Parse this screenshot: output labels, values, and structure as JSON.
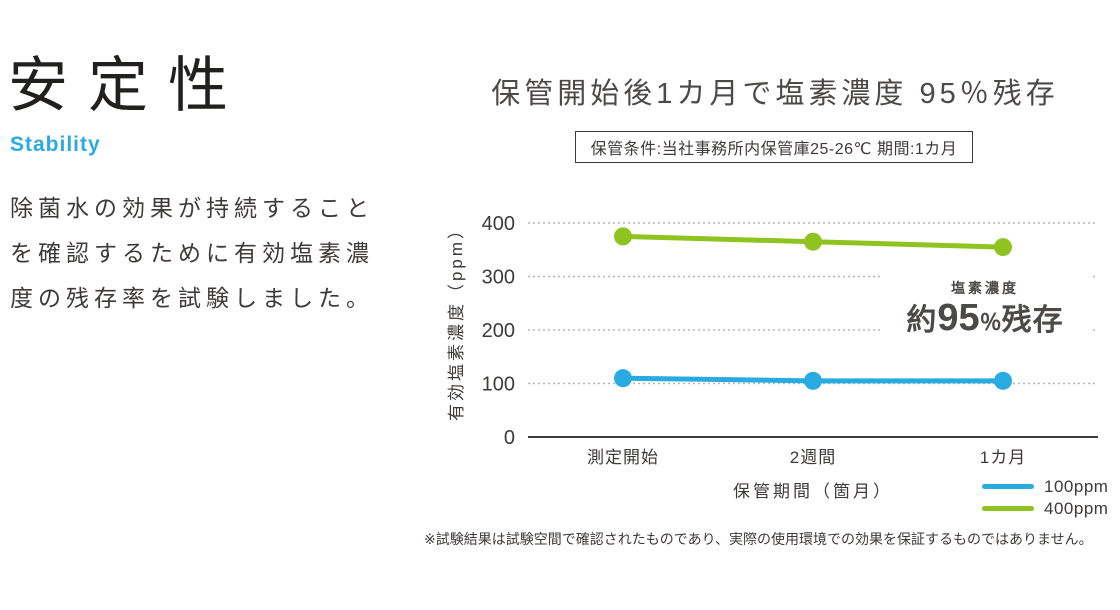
{
  "page": {
    "heading": "安定性",
    "heading_sub": "Stability",
    "accent_color": "#29abe2",
    "text_color": "#3e3a39"
  },
  "intro": {
    "lines": [
      "除菌水の効果が持続すること",
      "を確認するために有効塩素濃",
      "度の残存率を試験しました。"
    ]
  },
  "condition": "保管条件:当社事務所内保管庫25-26℃ 期間:1カ月",
  "chart_data": {
    "type": "line",
    "title": "保管開始後1カ月で塩素濃度 95％残存",
    "categories": [
      "測定開始",
      "2週間",
      "1カ月"
    ],
    "series": [
      {
        "name": "100ppm",
        "color": "#29abe2",
        "values": [
          110,
          105,
          105
        ]
      },
      {
        "name": "400ppm",
        "color": "#8fc31f",
        "values": [
          375,
          365,
          355
        ]
      }
    ],
    "xlabel": "保管期間（箇月）",
    "ylabel": "有効塩素濃度（ppm）",
    "ylim": [
      0,
      400
    ],
    "yticks": [
      0,
      100,
      200,
      300,
      400
    ],
    "grid": "horizontal-dotted",
    "grid_color": "#b5b5b6",
    "axis_color": "#3e3a39",
    "legend_position": "bottom-right",
    "annotation": {
      "label": "塩素濃度",
      "prefix": "約",
      "value": "95",
      "percent": "％",
      "suffix": "残存"
    }
  },
  "footnote": "※試験結果は試験空間で確認されたものであり、実際の使用環境での効果を保証するものではありません。"
}
